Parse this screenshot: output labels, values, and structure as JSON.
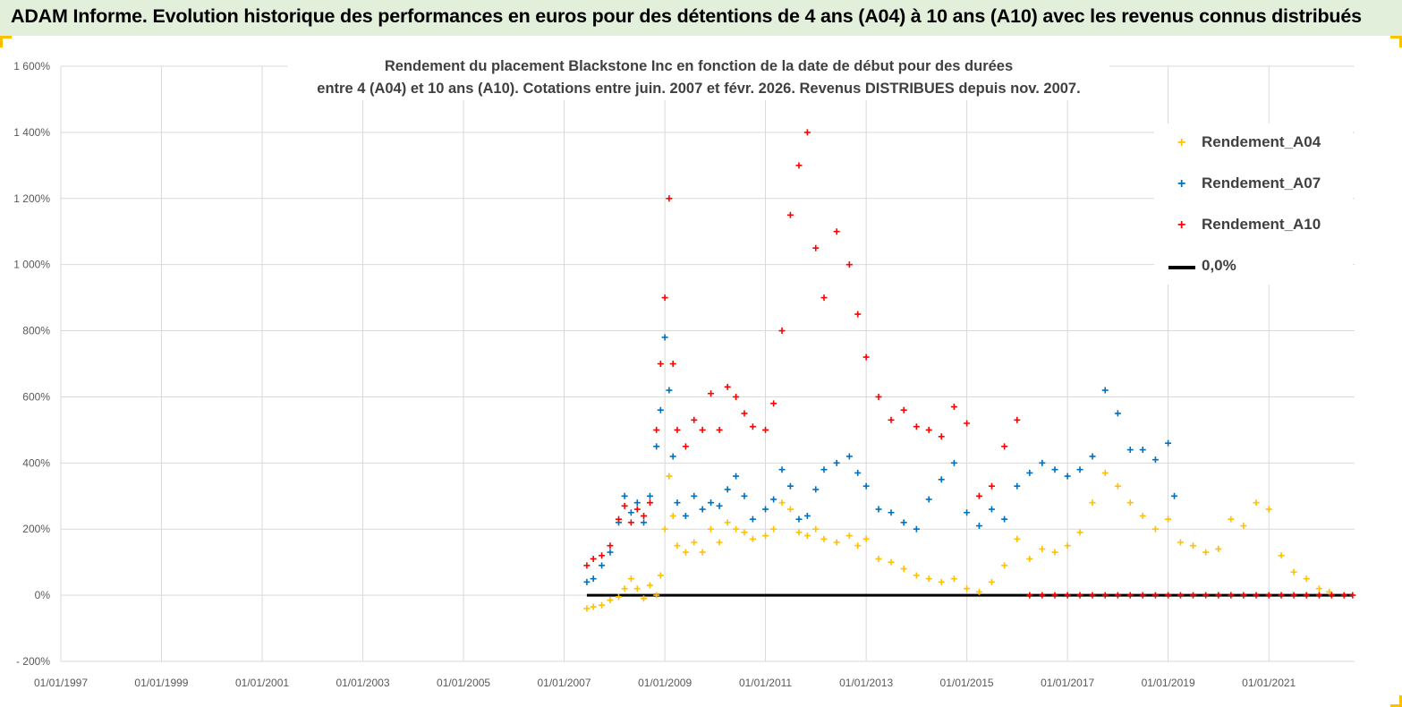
{
  "banner": {
    "title": "ADAM Informe. Evolution historique des performances en euros pour des détentions de 4 ans (A04) à 10 ans (A10) avec les revenus connus distribués",
    "background": "#e2efda",
    "corner_color": "#ffc000"
  },
  "chart_data": {
    "type": "scatter",
    "title_lines": [
      "Rendement du placement Blackstone Inc en fonction de la date de début pour des durées",
      "entre 4 (A04) et 10 ans (A10). Cotations entre juin. 2007 et févr. 2026. Revenus DISTRIBUES depuis nov. 2007."
    ],
    "xlabel": "",
    "ylabel": "",
    "xlim": [
      "1997-01-01",
      "2022-09-15"
    ],
    "ylim": [
      -200,
      1600
    ],
    "x_ticks": [
      "01/01/1997",
      "01/01/1999",
      "01/01/2001",
      "01/01/2003",
      "01/01/2005",
      "01/01/2007",
      "01/01/2009",
      "01/01/2011",
      "01/01/2013",
      "01/01/2015",
      "01/01/2017",
      "01/01/2019",
      "01/01/2021"
    ],
    "y_ticks": [
      {
        "value": -200,
        "label": "- 200%"
      },
      {
        "value": 0,
        "label": "0%"
      },
      {
        "value": 200,
        "label": "200%"
      },
      {
        "value": 400,
        "label": "400%"
      },
      {
        "value": 600,
        "label": "600%"
      },
      {
        "value": 800,
        "label": "800%"
      },
      {
        "value": 1000,
        "label": "1 000%"
      },
      {
        "value": 1200,
        "label": "1 200%"
      },
      {
        "value": 1400,
        "label": "1 400%"
      },
      {
        "value": 1600,
        "label": "1 600%"
      }
    ],
    "grid": true,
    "legend_position": "top-right",
    "series": [
      {
        "name": "Rendement_A04",
        "color": "#ffc000",
        "marker": "+",
        "points": [
          [
            "2007-06-15",
            -40
          ],
          [
            "2007-08-01",
            -35
          ],
          [
            "2007-10-01",
            -30
          ],
          [
            "2007-12-01",
            -15
          ],
          [
            "2008-02-01",
            -5
          ],
          [
            "2008-03-15",
            20
          ],
          [
            "2008-05-01",
            50
          ],
          [
            "2008-06-15",
            20
          ],
          [
            "2008-08-01",
            -10
          ],
          [
            "2008-09-15",
            30
          ],
          [
            "2008-11-01",
            0
          ],
          [
            "2008-12-01",
            60
          ],
          [
            "2009-01-01",
            200
          ],
          [
            "2009-02-01",
            360
          ],
          [
            "2009-03-01",
            240
          ],
          [
            "2009-04-01",
            150
          ],
          [
            "2009-06-01",
            130
          ],
          [
            "2009-08-01",
            160
          ],
          [
            "2009-10-01",
            130
          ],
          [
            "2009-12-01",
            200
          ],
          [
            "2010-02-01",
            160
          ],
          [
            "2010-04-01",
            220
          ],
          [
            "2010-06-01",
            200
          ],
          [
            "2010-08-01",
            190
          ],
          [
            "2010-10-01",
            170
          ],
          [
            "2011-01-01",
            180
          ],
          [
            "2011-03-01",
            200
          ],
          [
            "2011-05-01",
            280
          ],
          [
            "2011-07-01",
            260
          ],
          [
            "2011-09-01",
            190
          ],
          [
            "2011-11-01",
            180
          ],
          [
            "2012-01-01",
            200
          ],
          [
            "2012-03-01",
            170
          ],
          [
            "2012-06-01",
            160
          ],
          [
            "2012-09-01",
            180
          ],
          [
            "2012-11-01",
            150
          ],
          [
            "2013-01-01",
            170
          ],
          [
            "2013-04-01",
            110
          ],
          [
            "2013-07-01",
            100
          ],
          [
            "2013-10-01",
            80
          ],
          [
            "2014-01-01",
            60
          ],
          [
            "2014-04-01",
            50
          ],
          [
            "2014-07-01",
            40
          ],
          [
            "2014-10-01",
            50
          ],
          [
            "2015-01-01",
            20
          ],
          [
            "2015-04-01",
            10
          ],
          [
            "2015-07-01",
            40
          ],
          [
            "2015-10-01",
            90
          ],
          [
            "2016-01-01",
            170
          ],
          [
            "2016-04-01",
            110
          ],
          [
            "2016-07-01",
            140
          ],
          [
            "2016-10-01",
            130
          ],
          [
            "2017-01-01",
            150
          ],
          [
            "2017-04-01",
            190
          ],
          [
            "2017-07-01",
            280
          ],
          [
            "2017-10-01",
            370
          ],
          [
            "2018-01-01",
            330
          ],
          [
            "2018-04-01",
            280
          ],
          [
            "2018-07-01",
            240
          ],
          [
            "2018-10-01",
            200
          ],
          [
            "2019-01-01",
            230
          ],
          [
            "2019-04-01",
            160
          ],
          [
            "2019-07-01",
            150
          ],
          [
            "2019-10-01",
            130
          ],
          [
            "2020-01-01",
            140
          ],
          [
            "2020-04-01",
            230
          ],
          [
            "2020-07-01",
            210
          ],
          [
            "2020-10-01",
            280
          ],
          [
            "2021-01-01",
            260
          ],
          [
            "2021-04-01",
            120
          ],
          [
            "2021-07-01",
            70
          ],
          [
            "2021-10-01",
            50
          ],
          [
            "2022-01-01",
            20
          ],
          [
            "2022-03-15",
            10
          ]
        ]
      },
      {
        "name": "Rendement_A07",
        "color": "#0070c0",
        "marker": "+",
        "points": [
          [
            "2007-06-15",
            40
          ],
          [
            "2007-08-01",
            50
          ],
          [
            "2007-10-01",
            90
          ],
          [
            "2007-12-01",
            130
          ],
          [
            "2008-02-01",
            220
          ],
          [
            "2008-03-15",
            300
          ],
          [
            "2008-05-01",
            250
          ],
          [
            "2008-06-15",
            280
          ],
          [
            "2008-08-01",
            220
          ],
          [
            "2008-09-15",
            300
          ],
          [
            "2008-11-01",
            450
          ],
          [
            "2008-12-01",
            560
          ],
          [
            "2009-01-01",
            780
          ],
          [
            "2009-02-01",
            620
          ],
          [
            "2009-03-01",
            420
          ],
          [
            "2009-04-01",
            280
          ],
          [
            "2009-06-01",
            240
          ],
          [
            "2009-08-01",
            300
          ],
          [
            "2009-10-01",
            260
          ],
          [
            "2009-12-01",
            280
          ],
          [
            "2010-02-01",
            270
          ],
          [
            "2010-04-01",
            320
          ],
          [
            "2010-06-01",
            360
          ],
          [
            "2010-08-01",
            300
          ],
          [
            "2010-10-01",
            230
          ],
          [
            "2011-01-01",
            260
          ],
          [
            "2011-03-01",
            290
          ],
          [
            "2011-05-01",
            380
          ],
          [
            "2011-07-01",
            330
          ],
          [
            "2011-09-01",
            230
          ],
          [
            "2011-11-01",
            240
          ],
          [
            "2012-01-01",
            320
          ],
          [
            "2012-03-01",
            380
          ],
          [
            "2012-06-01",
            400
          ],
          [
            "2012-09-01",
            420
          ],
          [
            "2012-11-01",
            370
          ],
          [
            "2013-01-01",
            330
          ],
          [
            "2013-04-01",
            260
          ],
          [
            "2013-07-01",
            250
          ],
          [
            "2013-10-01",
            220
          ],
          [
            "2014-01-01",
            200
          ],
          [
            "2014-04-01",
            290
          ],
          [
            "2014-07-01",
            350
          ],
          [
            "2014-10-01",
            400
          ],
          [
            "2015-01-01",
            250
          ],
          [
            "2015-04-01",
            210
          ],
          [
            "2015-07-01",
            260
          ],
          [
            "2015-10-01",
            230
          ],
          [
            "2016-01-01",
            330
          ],
          [
            "2016-04-01",
            370
          ],
          [
            "2016-07-01",
            400
          ],
          [
            "2016-10-01",
            380
          ],
          [
            "2017-01-01",
            360
          ],
          [
            "2017-04-01",
            380
          ],
          [
            "2017-07-01",
            420
          ],
          [
            "2017-10-01",
            620
          ],
          [
            "2018-01-01",
            550
          ],
          [
            "2018-04-01",
            440
          ],
          [
            "2018-07-01",
            440
          ],
          [
            "2018-10-01",
            410
          ],
          [
            "2019-01-01",
            460
          ],
          [
            "2019-02-15",
            300
          ]
        ]
      },
      {
        "name": "Rendement_A10",
        "color": "#ff0000",
        "marker": "+",
        "points": [
          [
            "2007-06-15",
            90
          ],
          [
            "2007-08-01",
            110
          ],
          [
            "2007-10-01",
            120
          ],
          [
            "2007-12-01",
            150
          ],
          [
            "2008-02-01",
            230
          ],
          [
            "2008-03-15",
            270
          ],
          [
            "2008-05-01",
            220
          ],
          [
            "2008-06-15",
            260
          ],
          [
            "2008-08-01",
            240
          ],
          [
            "2008-09-15",
            280
          ],
          [
            "2008-11-01",
            500
          ],
          [
            "2008-12-01",
            700
          ],
          [
            "2009-01-01",
            900
          ],
          [
            "2009-02-01",
            1200
          ],
          [
            "2009-03-01",
            700
          ],
          [
            "2009-04-01",
            500
          ],
          [
            "2009-06-01",
            450
          ],
          [
            "2009-08-01",
            530
          ],
          [
            "2009-10-01",
            500
          ],
          [
            "2009-12-01",
            610
          ],
          [
            "2010-02-01",
            500
          ],
          [
            "2010-04-01",
            630
          ],
          [
            "2010-06-01",
            600
          ],
          [
            "2010-08-01",
            550
          ],
          [
            "2010-10-01",
            510
          ],
          [
            "2011-01-01",
            500
          ],
          [
            "2011-03-01",
            580
          ],
          [
            "2011-05-01",
            800
          ],
          [
            "2011-07-01",
            1150
          ],
          [
            "2011-09-01",
            1300
          ],
          [
            "2011-11-01",
            1400
          ],
          [
            "2012-01-01",
            1050
          ],
          [
            "2012-03-01",
            900
          ],
          [
            "2012-06-01",
            1100
          ],
          [
            "2012-09-01",
            1000
          ],
          [
            "2012-11-01",
            850
          ],
          [
            "2013-01-01",
            720
          ],
          [
            "2013-04-01",
            600
          ],
          [
            "2013-07-01",
            530
          ],
          [
            "2013-10-01",
            560
          ],
          [
            "2014-01-01",
            510
          ],
          [
            "2014-04-01",
            500
          ],
          [
            "2014-07-01",
            480
          ],
          [
            "2014-10-01",
            570
          ],
          [
            "2015-01-01",
            520
          ],
          [
            "2015-04-01",
            300
          ],
          [
            "2015-07-01",
            330
          ],
          [
            "2015-10-01",
            450
          ],
          [
            "2016-01-01",
            530
          ],
          [
            "2016-04-01",
            0
          ],
          [
            "2016-07-01",
            0
          ],
          [
            "2016-10-01",
            0
          ],
          [
            "2017-01-01",
            0
          ],
          [
            "2017-04-01",
            0
          ],
          [
            "2017-07-01",
            0
          ],
          [
            "2017-10-01",
            0
          ],
          [
            "2018-01-01",
            0
          ],
          [
            "2018-04-01",
            0
          ],
          [
            "2018-07-01",
            0
          ],
          [
            "2018-10-01",
            0
          ],
          [
            "2019-01-01",
            0
          ],
          [
            "2019-04-01",
            0
          ],
          [
            "2019-07-01",
            0
          ],
          [
            "2019-10-01",
            0
          ],
          [
            "2020-01-01",
            0
          ],
          [
            "2020-04-01",
            0
          ],
          [
            "2020-07-01",
            0
          ],
          [
            "2020-10-01",
            0
          ],
          [
            "2021-01-01",
            0
          ],
          [
            "2021-04-01",
            0
          ],
          [
            "2021-07-01",
            0
          ],
          [
            "2021-10-01",
            0
          ],
          [
            "2022-01-01",
            0
          ],
          [
            "2022-04-01",
            0
          ],
          [
            "2022-07-01",
            0
          ],
          [
            "2022-09-01",
            0
          ]
        ]
      },
      {
        "name": "0,0%",
        "color": "#000000",
        "marker": "line",
        "points": [
          [
            "2007-06-15",
            0
          ],
          [
            "2022-09-01",
            0
          ]
        ]
      }
    ]
  }
}
